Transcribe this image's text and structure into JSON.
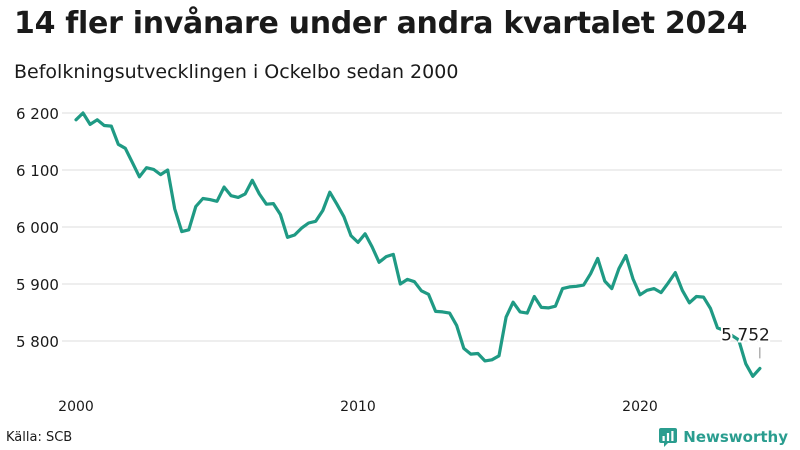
{
  "header": {
    "title": "14 fler invånare under andra kvartalet 2024",
    "subtitle": "Befolkningsutvecklingen i Ockelbo sedan 2000"
  },
  "footer": {
    "source": "Källa: SCB",
    "brand": "Newsworthy"
  },
  "colors": {
    "line": "#1f9a84",
    "grid": "#dddddd",
    "text": "#1a1a1a",
    "brand": "#2a9d8f"
  },
  "chart_data": {
    "type": "line",
    "title": "14 fler invånare under andra kvartalet 2024",
    "subtitle": "Befolkningsutvecklingen i Ockelbo sedan 2000",
    "xlabel": "",
    "ylabel": "",
    "x_unit": "quarter",
    "xlim": [
      2000,
      2024.5
    ],
    "ylim": [
      5720,
      6215
    ],
    "y_ticks": [
      5800,
      5900,
      6000,
      6100,
      6200
    ],
    "y_tick_labels": [
      "5 800",
      "5 900",
      "6 000",
      "6 100",
      "6 200"
    ],
    "x_ticks": [
      2000,
      2010,
      2020
    ],
    "x_tick_labels": [
      "2000",
      "2010",
      "2020"
    ],
    "grid": "horizontal",
    "legend": "none",
    "end_label": "5 752",
    "series": [
      {
        "x": [
          "2000 Q1",
          "2000 Q2",
          "2000 Q3",
          "2000 Q4",
          "2001 Q1",
          "2001 Q2",
          "2001 Q3",
          "2001 Q4",
          "2002 Q1",
          "2002 Q2",
          "2002 Q3",
          "2002 Q4",
          "2003 Q1",
          "2003 Q2",
          "2003 Q3",
          "2003 Q4",
          "2004 Q1",
          "2004 Q2",
          "2004 Q3",
          "2004 Q4",
          "2005 Q1",
          "2005 Q2",
          "2005 Q3",
          "2005 Q4",
          "2006 Q1",
          "2006 Q2",
          "2006 Q3",
          "2006 Q4",
          "2007 Q1",
          "2007 Q2",
          "2007 Q3",
          "2007 Q4",
          "2008 Q1",
          "2008 Q2",
          "2008 Q3",
          "2008 Q4",
          "2009 Q1",
          "2009 Q2",
          "2009 Q3",
          "2009 Q4",
          "2010 Q1",
          "2010 Q2",
          "2010 Q3",
          "2010 Q4",
          "2011 Q1",
          "2011 Q2",
          "2011 Q3",
          "2011 Q4",
          "2012 Q1",
          "2012 Q2",
          "2012 Q3",
          "2012 Q4",
          "2013 Q1",
          "2013 Q2",
          "2013 Q3",
          "2013 Q4",
          "2014 Q1",
          "2014 Q2",
          "2014 Q3",
          "2014 Q4",
          "2015 Q1",
          "2015 Q2",
          "2015 Q3",
          "2015 Q4",
          "2016 Q1",
          "2016 Q2",
          "2016 Q3",
          "2016 Q4",
          "2017 Q1",
          "2017 Q2",
          "2017 Q3",
          "2017 Q4",
          "2018 Q1",
          "2018 Q2",
          "2018 Q3",
          "2018 Q4",
          "2019 Q1",
          "2019 Q2",
          "2019 Q3",
          "2019 Q4",
          "2020 Q1",
          "2020 Q2",
          "2020 Q3",
          "2020 Q4",
          "2021 Q1",
          "2021 Q2",
          "2021 Q3",
          "2021 Q4",
          "2022 Q1",
          "2022 Q2",
          "2022 Q3",
          "2022 Q4",
          "2023 Q1",
          "2023 Q2",
          "2023 Q3",
          "2023 Q4",
          "2024 Q1",
          "2024 Q2"
        ],
        "values": [
          6188,
          6200,
          6180,
          6188,
          6178,
          6177,
          6145,
          6138,
          6113,
          6088,
          6104,
          6101,
          6092,
          6100,
          6032,
          5992,
          5995,
          6036,
          6050,
          6048,
          6045,
          6070,
          6055,
          6052,
          6058,
          6082,
          6058,
          6040,
          6041,
          6022,
          5982,
          5986,
          5998,
          6007,
          6010,
          6029,
          6061,
          6040,
          6018,
          5985,
          5973,
          5988,
          5965,
          5938,
          5948,
          5952,
          5900,
          5908,
          5904,
          5888,
          5882,
          5852,
          5851,
          5849,
          5827,
          5787,
          5777,
          5778,
          5765,
          5767,
          5774,
          5842,
          5868,
          5851,
          5849,
          5878,
          5859,
          5858,
          5861,
          5892,
          5895,
          5896,
          5898,
          5918,
          5945,
          5905,
          5892,
          5927,
          5950,
          5909,
          5881,
          5889,
          5892,
          5885,
          5902,
          5920,
          5889,
          5867,
          5878,
          5877,
          5857,
          5823,
          5818,
          5810,
          5802,
          5760,
          5738,
          5752
        ]
      }
    ]
  }
}
